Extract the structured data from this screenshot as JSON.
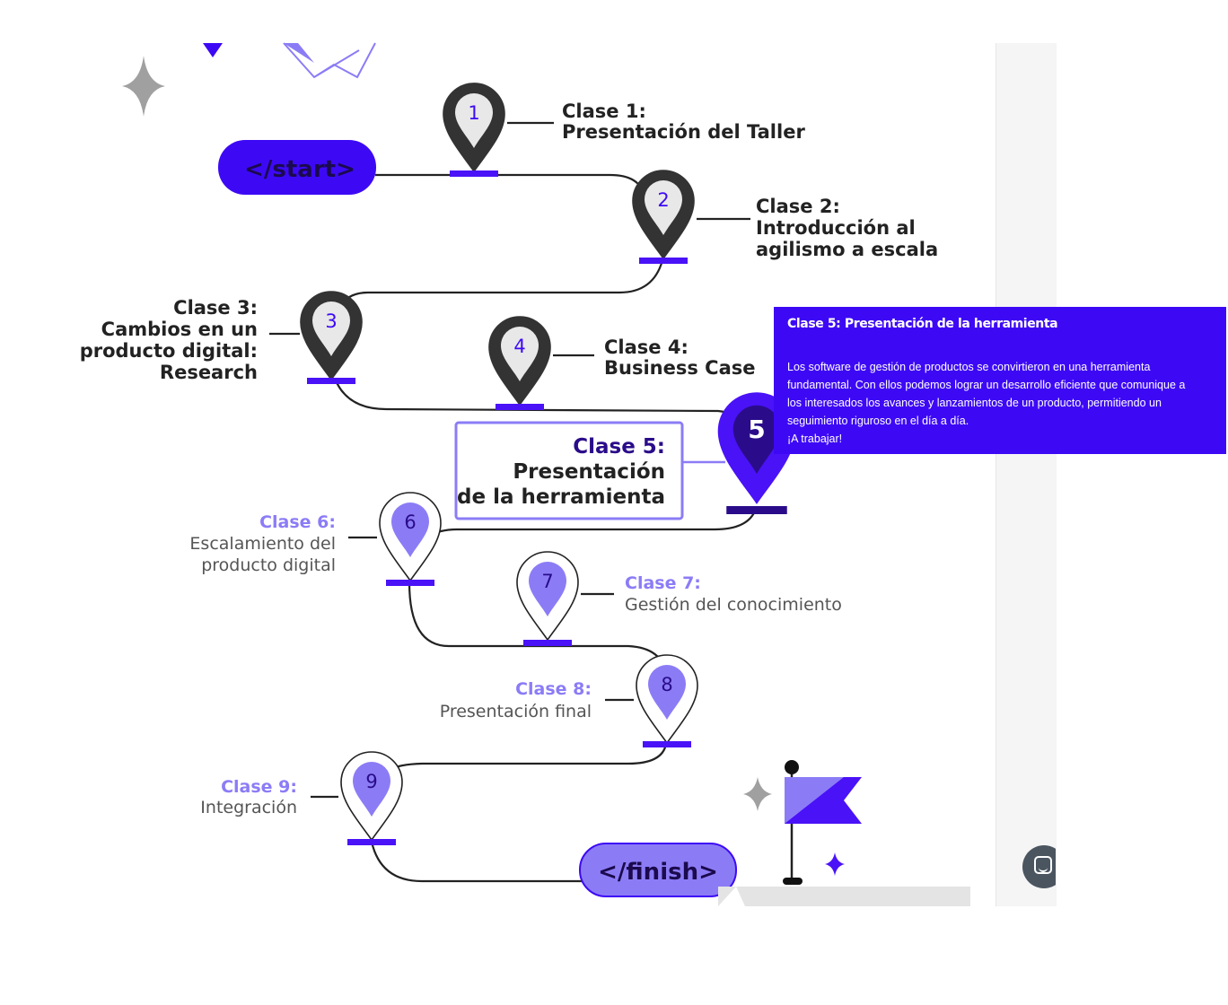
{
  "roadmap": {
    "start_label": "</start>",
    "finish_label": "</finish>",
    "classes": [
      {
        "number": "1",
        "heading": "Clase 1:",
        "lines": [
          "Presentación del Taller"
        ]
      },
      {
        "number": "2",
        "heading": "Clase 2:",
        "lines": [
          "Introducción al",
          "agilismo a escala"
        ]
      },
      {
        "number": "3",
        "heading": "Clase 3:",
        "lines": [
          "Cambios en un",
          "producto digital:",
          "Research"
        ]
      },
      {
        "number": "4",
        "heading": "Clase 4:",
        "lines": [
          "Business Case"
        ]
      },
      {
        "number": "5",
        "heading": "Clase 5:",
        "lines": [
          "Presentación",
          "de la herramienta"
        ]
      },
      {
        "number": "6",
        "heading": "Clase 6:",
        "lines": [
          "Escalamiento del",
          "producto digital"
        ]
      },
      {
        "number": "7",
        "heading": "Clase 7:",
        "lines": [
          "Gestión del conocimiento"
        ]
      },
      {
        "number": "8",
        "heading": "Clase 8:",
        "lines": [
          "Presentación final"
        ]
      },
      {
        "number": "9",
        "heading": "Clase 9:",
        "lines": [
          "Integración"
        ]
      }
    ]
  },
  "tooltip": {
    "title": "Clase 5: Presentación de la herramienta",
    "body_lines": [
      "Los software de gestión de productos se convirtieron en una herramienta",
      "fundamental. Con ellos podemos lograr un desarrollo eficiente que comunique a",
      "los interesados los avances y lanzamientos de un producto, permitiendo un",
      "seguimiento riguroso en el día a día.",
      "¡A trabajar!"
    ]
  },
  "colors": {
    "accent": "#4a12f7",
    "accent_light": "#8b7cf6",
    "dark_pin": "#333333",
    "tooltip_bg": "#3d09f5"
  },
  "icons": {
    "chat": "chat-bubble-icon",
    "flag": "flag-icon",
    "sparkle": "sparkle-icon"
  }
}
